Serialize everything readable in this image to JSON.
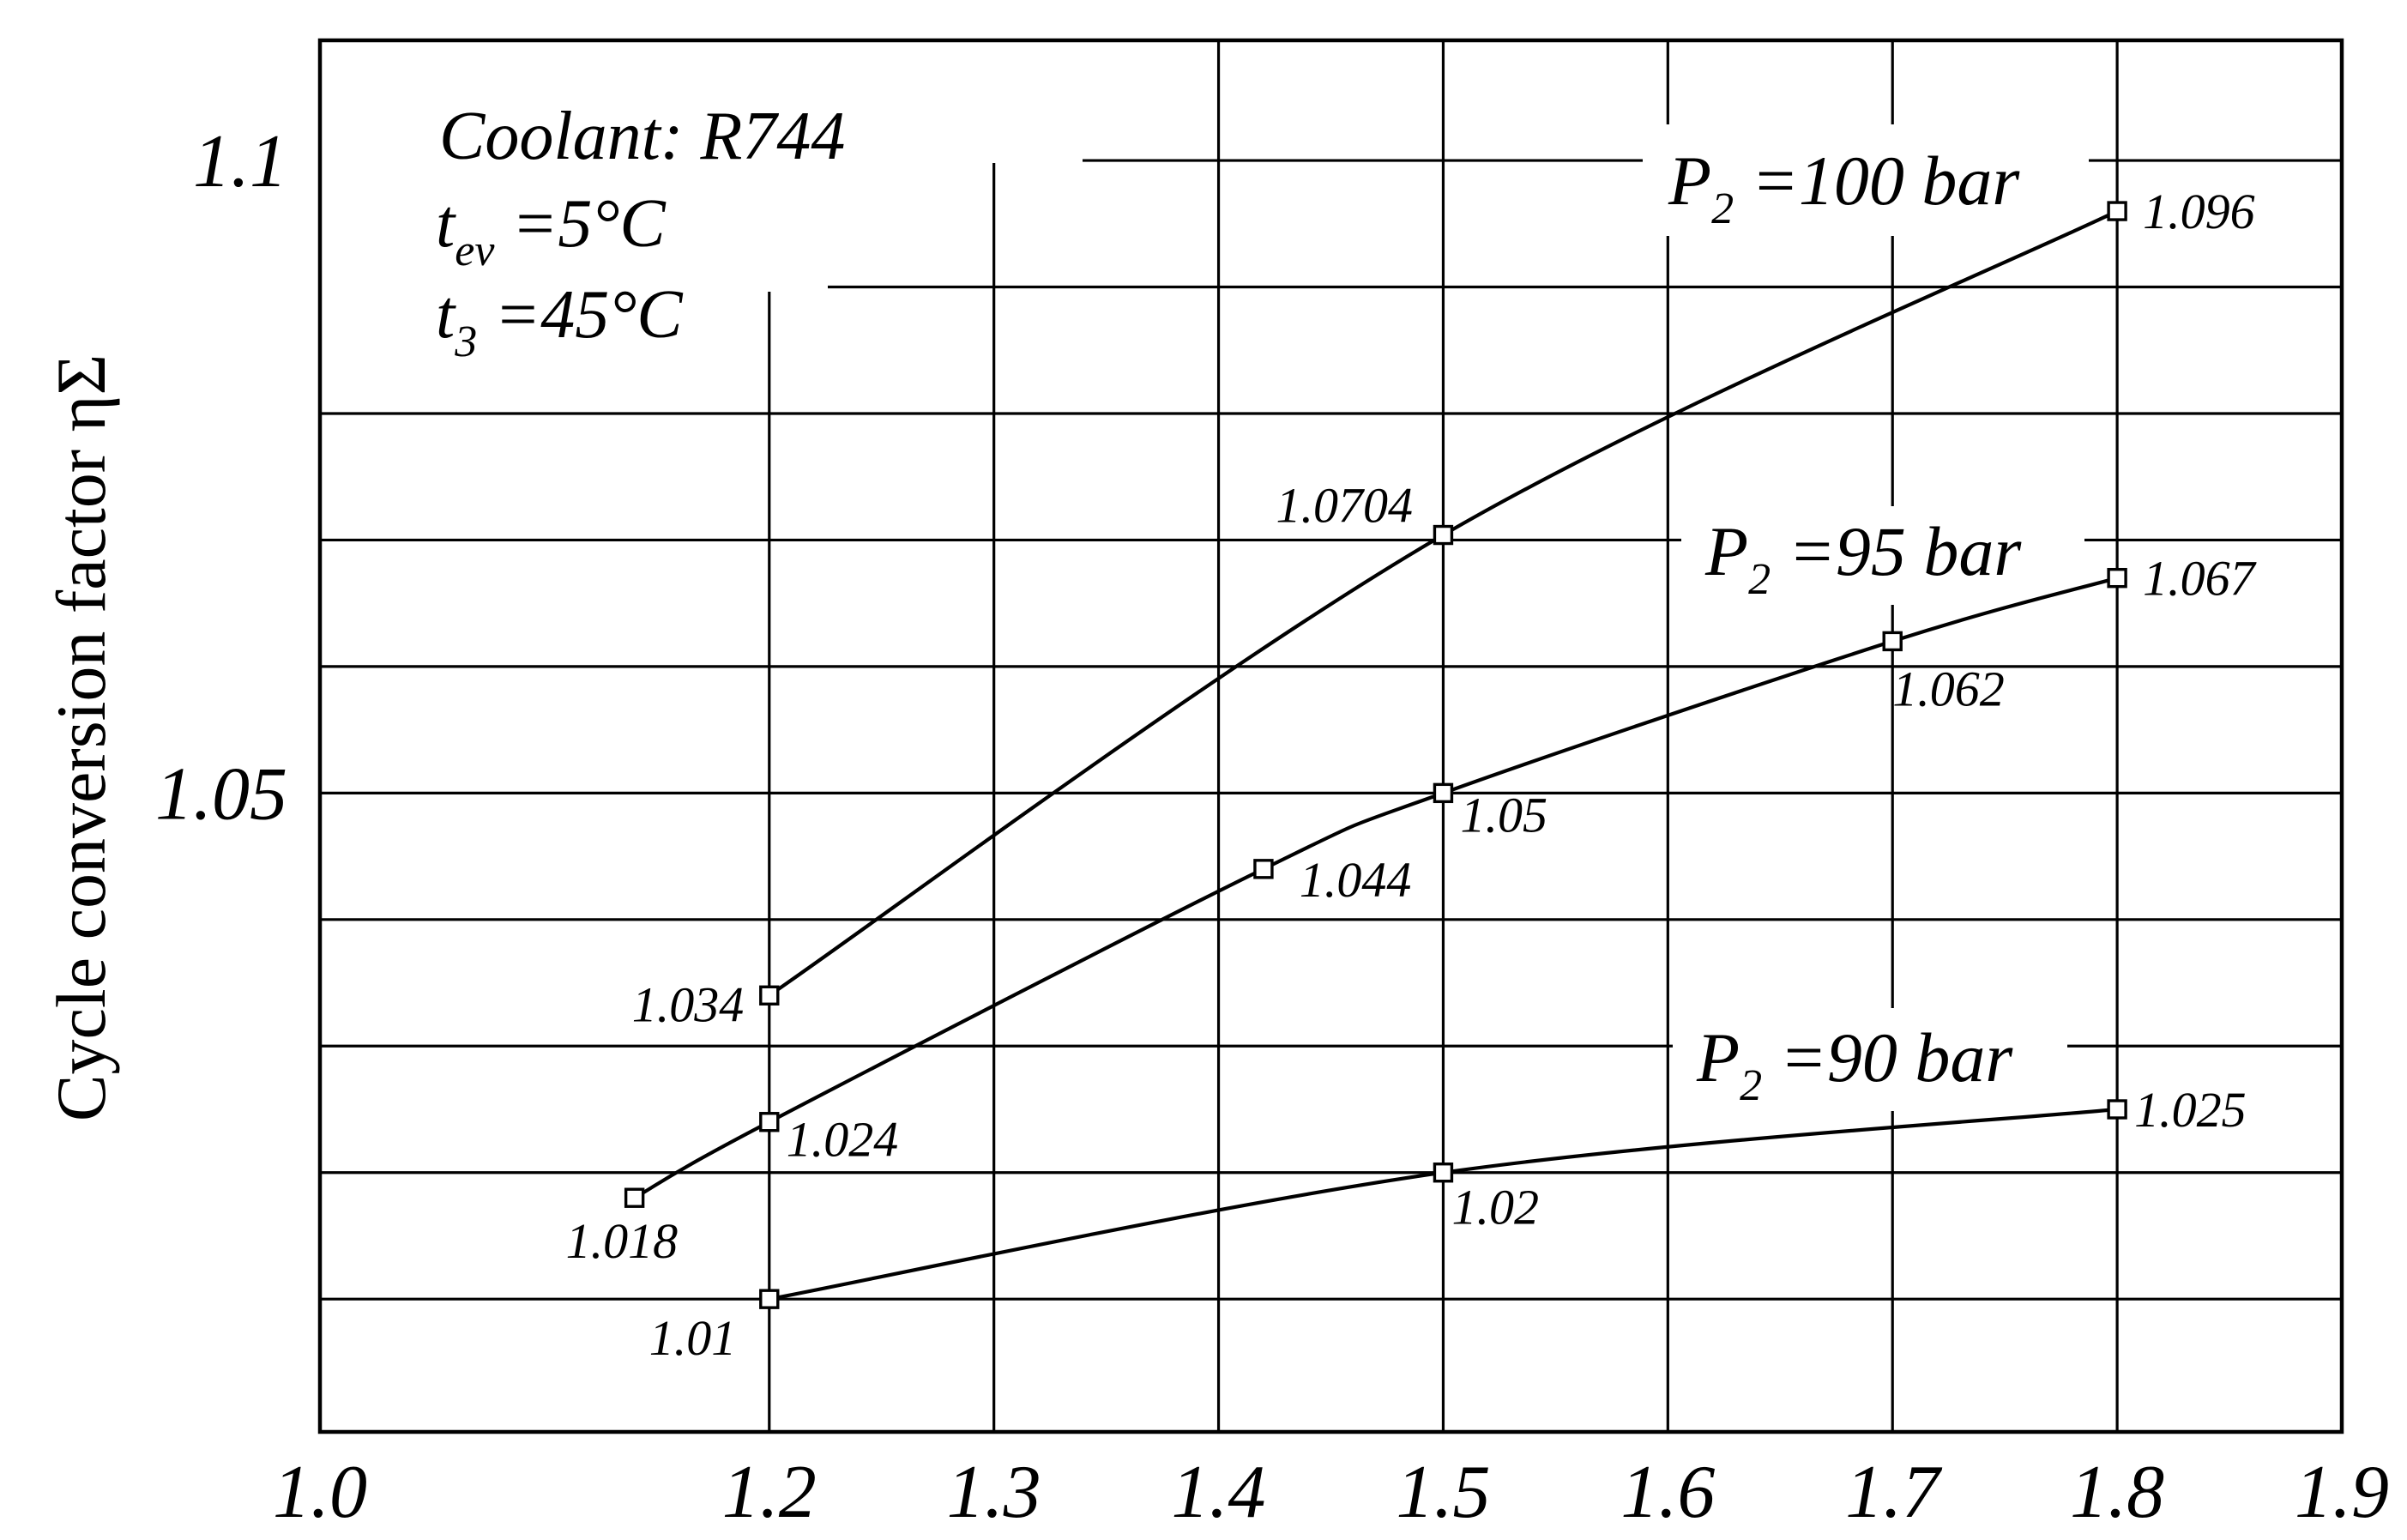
{
  "chart_data": {
    "type": "line",
    "title": "",
    "xlabel": "",
    "ylabel": "Cycle conversion factor ηΣ",
    "xlim": [
      1.0,
      1.9
    ],
    "ylim": [
      0.9995,
      1.1095
    ],
    "x_ticks": [
      "1.0",
      "1.2",
      "1.3",
      "1.4",
      "1.5",
      "1.6",
      "1.7",
      "1.8",
      "1.9"
    ],
    "x_tick_values": [
      1.0,
      1.2,
      1.3,
      1.4,
      1.5,
      1.6,
      1.7,
      1.8,
      1.9
    ],
    "y_ticks": [
      "1.05",
      "1.1"
    ],
    "y_tick_values": [
      1.05,
      1.1
    ],
    "grid": true,
    "annotation_lines": [
      "Coolant: R744",
      "t",
      "ev",
      " =5°C",
      "t",
      "3",
      " =45°C"
    ],
    "series": [
      {
        "label_main": "P",
        "label_sub": "2",
        "label_rest": " =100 bar",
        "points": [
          {
            "x": 1.2,
            "y": 1.034,
            "label": "1.034"
          },
          {
            "x": 1.5,
            "y": 1.0704,
            "label": "1.0704"
          },
          {
            "x": 1.8,
            "y": 1.096,
            "label": "1.096"
          }
        ]
      },
      {
        "label_main": "P",
        "label_sub": "2",
        "label_rest": " =95 bar",
        "points": [
          {
            "x": 1.14,
            "y": 1.018,
            "label": "1.018"
          },
          {
            "x": 1.2,
            "y": 1.024,
            "label": "1.024"
          },
          {
            "x": 1.42,
            "y": 1.044,
            "label": "1.044"
          },
          {
            "x": 1.5,
            "y": 1.05,
            "label": "1.05"
          },
          {
            "x": 1.7,
            "y": 1.062,
            "label": "1.062"
          },
          {
            "x": 1.8,
            "y": 1.067,
            "label": "1.067"
          }
        ]
      },
      {
        "label_main": "P",
        "label_sub": "2",
        "label_rest": " =90 bar",
        "points": [
          {
            "x": 1.2,
            "y": 1.01,
            "label": "1.01"
          },
          {
            "x": 1.5,
            "y": 1.02,
            "label": "1.02"
          },
          {
            "x": 1.8,
            "y": 1.025,
            "label": "1.025"
          }
        ]
      }
    ]
  }
}
